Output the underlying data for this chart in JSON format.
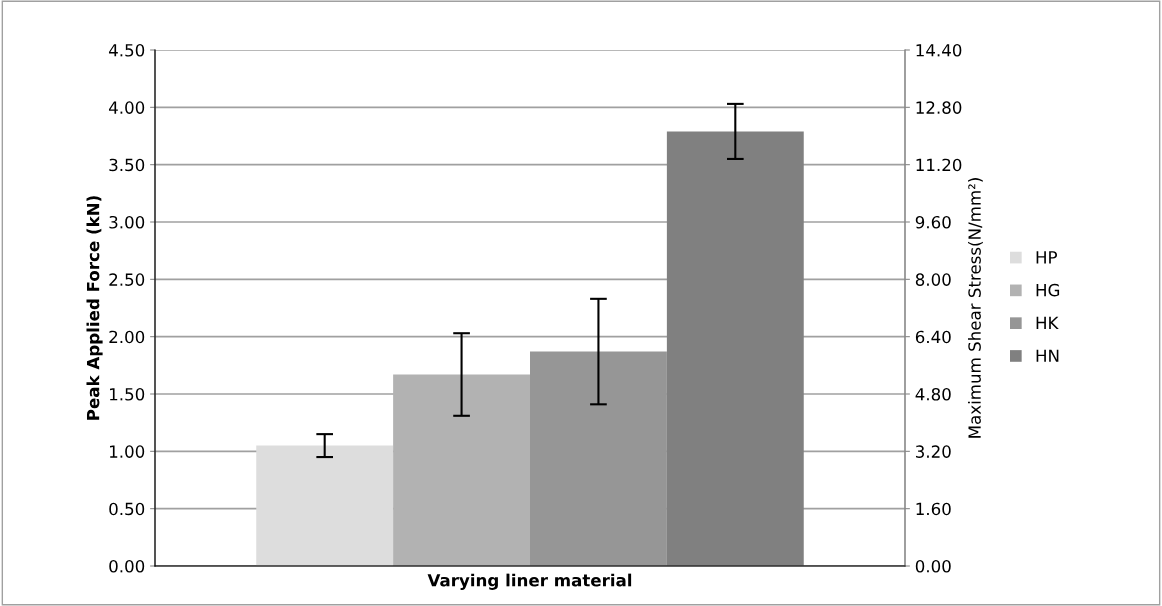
{
  "chart_data": {
    "type": "bar",
    "categories": [
      null
    ],
    "xlabel": "Varying liner material",
    "ylabel": "Peak Applied Force (kN)",
    "y2label": "Maximum Shear Stress(N/mm²)",
    "series": [
      {
        "name": "HP",
        "color": "#dddddd",
        "values": [
          1.05
        ],
        "errors": [
          0.1
        ]
      },
      {
        "name": "HG",
        "color": "#b2b2b2",
        "values": [
          1.67
        ],
        "errors": [
          0.36
        ]
      },
      {
        "name": "HK",
        "color": "#969696",
        "values": [
          1.87
        ],
        "errors": [
          0.46
        ]
      },
      {
        "name": "HN",
        "color": "#808080",
        "values": [
          3.79
        ],
        "errors": [
          0.24
        ]
      }
    ],
    "ylim": [
      0,
      4.5
    ],
    "yticks": [
      {
        "value": 0,
        "label": "0.00"
      },
      {
        "value": 0.5,
        "label": "0.50"
      },
      {
        "value": 1,
        "label": "1.00"
      },
      {
        "value": 1.5,
        "label": "1.50"
      },
      {
        "value": 2,
        "label": "2.00"
      },
      {
        "value": 2.5,
        "label": "2.50"
      },
      {
        "value": 3,
        "label": "3.00"
      },
      {
        "value": 3.5,
        "label": "3.50"
      },
      {
        "value": 4,
        "label": "4.00"
      },
      {
        "value": 4.5,
        "label": "4.50"
      }
    ],
    "y2lim": [
      0,
      14.4
    ],
    "y2ticks": [
      {
        "value": 0,
        "label": "0.00"
      },
      {
        "value": 1.6,
        "label": "1.60"
      },
      {
        "value": 3.2,
        "label": "3.20"
      },
      {
        "value": 4.8,
        "label": "4.80"
      },
      {
        "value": 6.4,
        "label": "6.40"
      },
      {
        "value": 8,
        "label": "8.00"
      },
      {
        "value": 9.6,
        "label": "9.60"
      },
      {
        "value": 11.2,
        "label": "11.20"
      },
      {
        "value": 12.8,
        "label": "12.80"
      },
      {
        "value": 14.4,
        "label": "14.40"
      }
    ],
    "grid": "y",
    "legend": "right"
  }
}
